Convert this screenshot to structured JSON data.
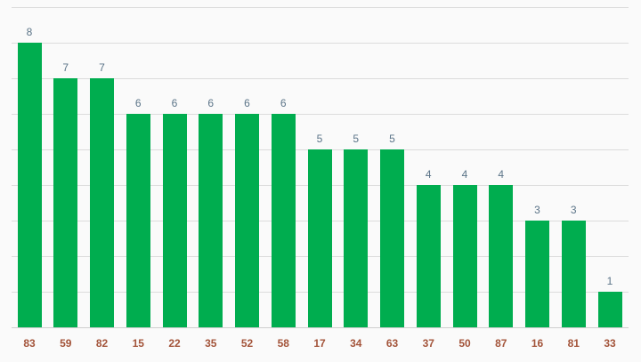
{
  "chart_data": {
    "type": "bar",
    "categories": [
      "83",
      "59",
      "82",
      "15",
      "22",
      "35",
      "52",
      "58",
      "17",
      "34",
      "63",
      "37",
      "50",
      "87",
      "16",
      "81",
      "33"
    ],
    "values": [
      8,
      7,
      7,
      6,
      6,
      6,
      6,
      6,
      5,
      5,
      5,
      4,
      4,
      4,
      3,
      3,
      1
    ],
    "data_labels": [
      "8",
      "7",
      "7",
      "6",
      "6",
      "6",
      "6",
      "6",
      "5",
      "5",
      "5",
      "4",
      "4",
      "4",
      "3",
      "3",
      "1"
    ],
    "ylim": [
      0,
      9
    ],
    "grid": true,
    "legend": "none"
  },
  "colors": {
    "background": "#fafafa",
    "bar": "#00ad4f",
    "data_label": "#5b7488",
    "tick_label": "#a3543a",
    "grid": "#dcdcdc"
  }
}
